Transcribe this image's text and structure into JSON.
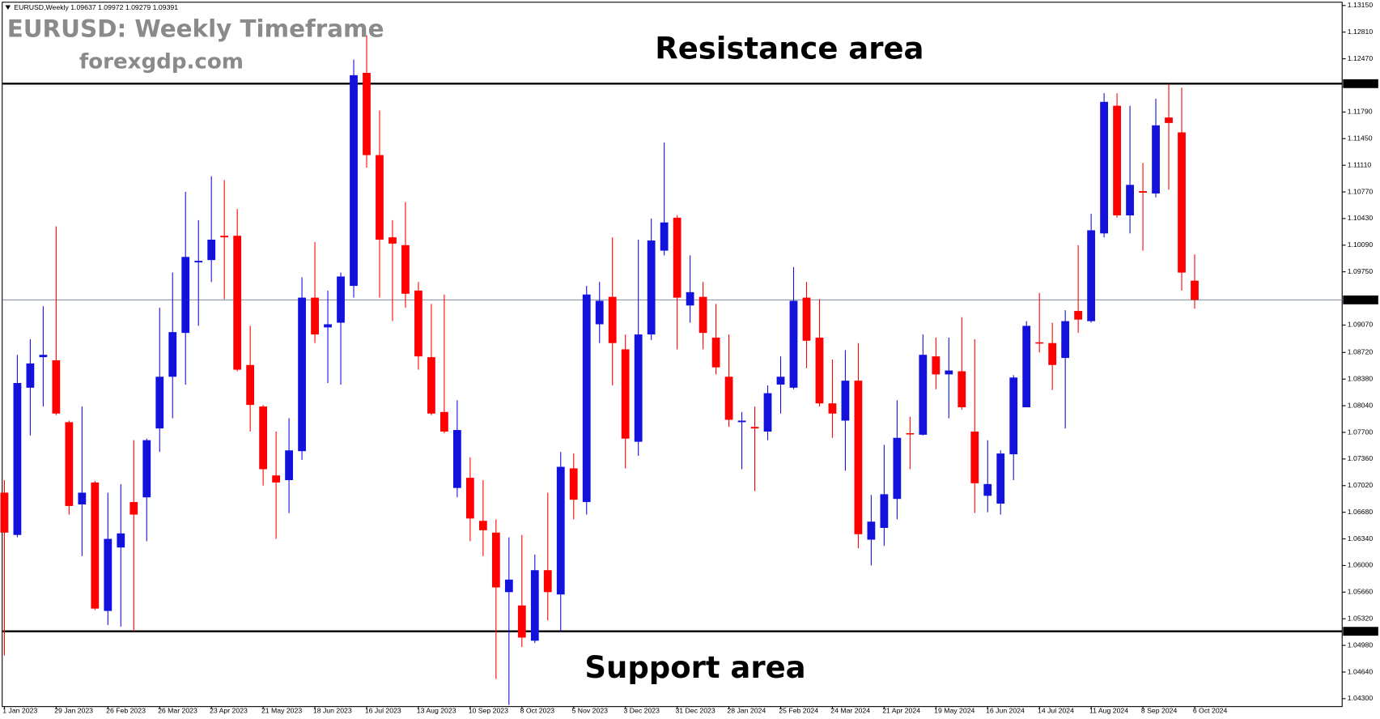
{
  "chart_data": {
    "type": "candlestick",
    "header": "EURUSD,Weekly  1.09637 1.09972 1.09279 1.09391",
    "title": "EURUSD: Weekly Timeframe",
    "subtitle": "forexgdp.com",
    "annotations": [
      {
        "text": "Resistance area",
        "level": {
          "value": 1.12152,
          "label": "1.12152"
        }
      },
      {
        "text": "Support area",
        "level": {
          "value": 1.0516,
          "label": "1.05160"
        }
      }
    ],
    "current_price": {
      "value": 1.09391,
      "label": "1.09391"
    },
    "categories": [
      "1 Jan 2023",
      null,
      null,
      null,
      "29 Jan 2023",
      null,
      null,
      null,
      "26 Feb 2023",
      null,
      null,
      null,
      "26 Mar 2023",
      null,
      null,
      null,
      "23 Apr 2023",
      null,
      null,
      null,
      "21 May 2023",
      null,
      null,
      null,
      "18 Jun 2023",
      null,
      null,
      null,
      "16 Jul 2023",
      null,
      null,
      null,
      "13 Aug 2023",
      null,
      null,
      null,
      "10 Sep 2023",
      null,
      null,
      null,
      "8 Oct 2023",
      null,
      null,
      null,
      "5 Nov 2023",
      null,
      null,
      null,
      "3 Dec 2023",
      null,
      null,
      null,
      "31 Dec 2023",
      null,
      null,
      null,
      "28 Jan 2024",
      null,
      null,
      null,
      "25 Feb 2024",
      null,
      null,
      null,
      "24 Mar 2024",
      null,
      null,
      null,
      "21 Apr 2024",
      null,
      null,
      null,
      "19 May 2024",
      null,
      null,
      null,
      "16 Jun 2024",
      null,
      null,
      null,
      "14 Jul 2024",
      null,
      null,
      null,
      "11 Aug 2024",
      null,
      null,
      null,
      "8 Sep 2024",
      null,
      null,
      null,
      "6 Oct 2024"
    ],
    "open": [
      1.0693,
      1.0639,
      1.0827,
      1.0866,
      1.0862,
      1.0783,
      1.0678,
      1.0706,
      1.0542,
      1.0623,
      1.0681,
      1.0687,
      1.0775,
      1.0841,
      1.0897,
      1.0987,
      1.099,
      1.1021,
      1.1021,
      1.0856,
      1.0803,
      1.0715,
      1.0709,
      1.0746,
      1.0942,
      1.0904,
      1.091,
      1.0957,
      1.1229,
      1.1124,
      1.1019,
      1.1009,
      1.0951,
      1.0866,
      1.0796,
      1.0699,
      1.0712,
      1.0657,
      1.0642,
      1.0566,
      1.0549,
      1.0504,
      1.0594,
      1.0563,
      1.0724,
      1.0681,
      1.0908,
      1.0943,
      1.0876,
      1.0758,
      1.0895,
      1.1002,
      1.1044,
      1.0932,
      1.0943,
      1.0891,
      1.0841,
      1.0783,
      1.0777,
      1.0771,
      1.0831,
      1.0827,
      1.0942,
      1.0891,
      1.0807,
      1.0785,
      1.0836,
      1.0633,
      1.0648,
      1.0685,
      1.0769,
      1.0767,
      1.0867,
      1.0844,
      1.0848,
      1.0771,
      1.0689,
      1.0679,
      1.0742,
      1.0802,
      1.0885,
      1.0884,
      1.0865,
      1.0925,
      1.0912,
      1.1024,
      1.1187,
      1.1047,
      1.1078,
      1.1075,
      1.1172,
      1.1153,
      1.09637
    ],
    "high": [
      1.0709,
      1.0869,
      1.0889,
      1.0931,
      1.1033,
      1.0785,
      1.0803,
      1.0708,
      1.0693,
      1.0704,
      1.076,
      1.0762,
      1.0929,
      1.0974,
      1.1077,
      1.1041,
      1.1097,
      1.1092,
      1.1055,
      1.0906,
      1.0805,
      1.0771,
      1.0788,
      1.0968,
      1.1013,
      1.0951,
      1.0974,
      1.1246,
      1.1277,
      1.1181,
      1.1041,
      1.1064,
      1.0962,
      1.0934,
      1.0946,
      1.0811,
      1.0738,
      1.0709,
      1.0659,
      1.0636,
      1.0639,
      1.0614,
      1.0693,
      1.0745,
      1.0743,
      1.0957,
      1.0962,
      1.1019,
      1.0895,
      1.1016,
      1.1043,
      1.114,
      1.1047,
      1.0996,
      1.0962,
      1.0934,
      1.0895,
      1.0796,
      1.0803,
      1.083,
      1.0867,
      1.0981,
      1.0962,
      1.094,
      1.0863,
      1.0875,
      1.0884,
      1.069,
      1.0754,
      1.0811,
      1.079,
      1.0895,
      1.0891,
      1.0891,
      1.0917,
      1.0889,
      1.076,
      1.0747,
      1.0843,
      1.0912,
      1.0948,
      1.091,
      1.0926,
      1.1009,
      1.1049,
      1.1203,
      1.1203,
      1.1187,
      1.1114,
      1.1196,
      1.1215,
      1.121,
      1.09972
    ],
    "low": [
      1.0485,
      1.0636,
      1.0766,
      1.0803,
      1.0792,
      1.0665,
      1.0612,
      1.0543,
      1.0524,
      1.0522,
      1.0516,
      1.0631,
      1.0745,
      1.0788,
      1.0831,
      1.0906,
      1.0962,
      1.094,
      1.0848,
      1.0771,
      1.0702,
      1.0634,
      1.0667,
      1.0735,
      1.0884,
      1.0833,
      1.0831,
      1.0942,
      1.1108,
      1.0942,
      1.0912,
      1.0929,
      1.085,
      1.0792,
      1.0769,
      1.0687,
      1.0631,
      1.0612,
      1.0455,
      1.0422,
      1.0496,
      1.0501,
      1.053,
      1.0515,
      1.0659,
      1.0665,
      1.0884,
      1.083,
      1.0724,
      1.074,
      1.0888,
      1.0996,
      1.0876,
      1.091,
      1.0876,
      1.0844,
      1.0777,
      1.0723,
      1.0695,
      1.076,
      1.0794,
      1.0825,
      1.0852,
      1.0803,
      1.0763,
      1.0721,
      1.0622,
      1.06,
      1.0625,
      1.0659,
      1.0723,
      1.0766,
      1.0825,
      1.0788,
      1.0799,
      1.0667,
      1.0668,
      1.0665,
      1.0709,
      1.0802,
      1.0872,
      1.0824,
      1.0775,
      1.0897,
      1.091,
      1.1019,
      1.1044,
      1.1024,
      1.1002,
      1.107,
      1.108,
      1.0951,
      1.09279
    ],
    "close": [
      1.0642,
      1.0833,
      1.0858,
      1.0869,
      1.0794,
      1.0676,
      1.0693,
      1.0545,
      1.0634,
      1.0641,
      1.0665,
      1.076,
      1.0841,
      1.0898,
      1.0994,
      1.0989,
      1.1016,
      1.1019,
      1.085,
      1.0805,
      1.0723,
      1.0706,
      1.0747,
      1.0942,
      1.0895,
      1.0908,
      1.0969,
      1.1226,
      1.1124,
      1.1016,
      1.1011,
      1.0947,
      1.0867,
      1.0794,
      1.0771,
      1.0773,
      1.066,
      1.0645,
      1.0572,
      1.0582,
      1.0508,
      1.0594,
      1.0566,
      1.0726,
      1.0684,
      1.0946,
      1.0938,
      1.0884,
      1.0762,
      1.0895,
      1.1015,
      1.1038,
      1.0942,
      1.0949,
      1.0897,
      1.0853,
      1.0786,
      1.0785,
      1.0775,
      1.082,
      1.0841,
      1.0938,
      1.0887,
      1.0807,
      1.0794,
      1.0836,
      1.064,
      1.0656,
      1.0691,
      1.0763,
      1.0768,
      1.0869,
      1.0844,
      1.0849,
      1.0802,
      1.0705,
      1.0704,
      1.0743,
      1.084,
      1.0906,
      1.0884,
      1.0856,
      1.0912,
      1.0914,
      1.1028,
      1.1192,
      1.1047,
      1.1086,
      1.1076,
      1.1162,
      1.1165,
      1.0974,
      1.09391
    ],
    "up_color": "#1212dc",
    "down_color": "#ff0000",
    "ylim": [
      1.042,
      1.1322
    ],
    "yticks": [
      {
        "value": 1.1315,
        "label": "1.13150"
      },
      {
        "value": 1.1281,
        "label": "1.12810"
      },
      {
        "value": 1.1247,
        "label": "1.12470"
      },
      {
        "value": 1.1179,
        "label": "1.11790"
      },
      {
        "value": 1.1145,
        "label": "1.11450"
      },
      {
        "value": 1.1111,
        "label": "1.11110"
      },
      {
        "value": 1.1077,
        "label": "1.10770"
      },
      {
        "value": 1.1043,
        "label": "1.10430"
      },
      {
        "value": 1.1009,
        "label": "1.10090"
      },
      {
        "value": 1.0975,
        "label": "1.09750"
      },
      {
        "value": 1.0907,
        "label": "1.09070"
      },
      {
        "value": 1.0872,
        "label": "1.08720"
      },
      {
        "value": 1.0838,
        "label": "1.08380"
      },
      {
        "value": 1.0804,
        "label": "1.08040"
      },
      {
        "value": 1.077,
        "label": "1.07700"
      },
      {
        "value": 1.0736,
        "label": "1.07360"
      },
      {
        "value": 1.0702,
        "label": "1.07020"
      },
      {
        "value": 1.0668,
        "label": "1.06680"
      },
      {
        "value": 1.0634,
        "label": "1.06340"
      },
      {
        "value": 1.06,
        "label": "1.06000"
      },
      {
        "value": 1.0566,
        "label": "1.05660"
      },
      {
        "value": 1.0532,
        "label": "1.05320"
      },
      {
        "value": 1.0498,
        "label": "1.04980"
      },
      {
        "value": 1.0464,
        "label": "1.04640"
      },
      {
        "value": 1.043,
        "label": "1.04300"
      }
    ],
    "grid": false
  }
}
